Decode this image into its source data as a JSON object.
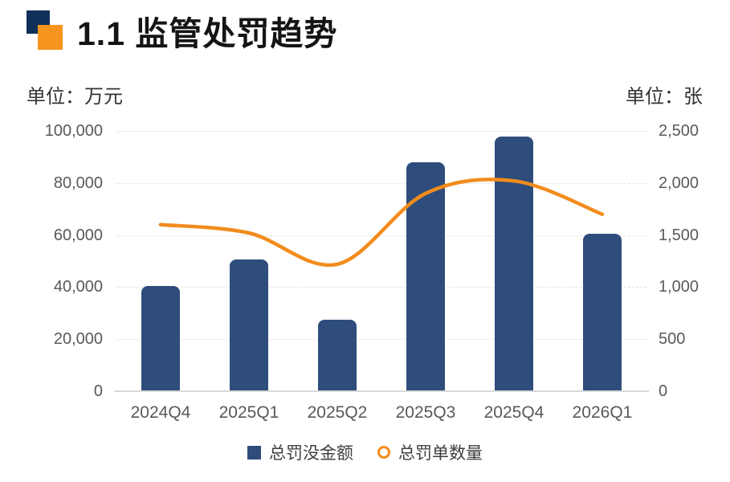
{
  "header": {
    "title": "1.1 监管处罚趋势"
  },
  "axes": {
    "left_unit": "单位：万元",
    "right_unit": "单位：张"
  },
  "chart_data": {
    "type": "combo",
    "categories": [
      "2024Q4",
      "2025Q1",
      "2025Q2",
      "2025Q3",
      "2025Q4",
      "2026Q1"
    ],
    "series": [
      {
        "name": "总罚没金额",
        "type": "bar",
        "y_axis": "left",
        "unit": "万元",
        "values": [
          40500,
          50500,
          27500,
          88000,
          98000,
          60500
        ],
        "color": "#2F4D7C"
      },
      {
        "name": "总罚单数量",
        "type": "line",
        "y_axis": "right",
        "unit": "张",
        "values": [
          1600,
          1520,
          1220,
          1900,
          2020,
          1700
        ],
        "color": "#F28C1C",
        "smooth": true
      }
    ],
    "left_axis": {
      "title": "单位：万元",
      "min": 0,
      "max": 100000,
      "tick_labels": [
        "100,000",
        "80,000",
        "60,000",
        "40,000",
        "20,000",
        "0"
      ]
    },
    "right_axis": {
      "title": "单位：张",
      "min": 0,
      "max": 2500,
      "tick_labels": [
        "2,500",
        "2,000",
        "1,500",
        "1,000",
        "500",
        "0"
      ]
    },
    "x_axis": {
      "labels": [
        "2024Q4",
        "2025Q1",
        "2025Q2",
        "2025Q3",
        "2025Q4",
        "2026Q1"
      ]
    },
    "grid": "horizontal-dashed",
    "legend_position": "bottom-center"
  },
  "legend": {
    "items": [
      {
        "label": "总罚没金额",
        "marker": "square",
        "color": "#2F4D7C"
      },
      {
        "label": "总罚单数量",
        "marker": "ring",
        "color": "#F28C1C"
      }
    ]
  },
  "colors": {
    "bar": "#2F4D7C",
    "line": "#F28C1C",
    "logo_navy": "#0F3058",
    "logo_orange": "#F7941E",
    "grid": "#E3E3E3",
    "axis_line": "#D8D8D8",
    "tick_text": "#595959",
    "title_text": "#141414",
    "unit_text": "#333333",
    "legend_text": "#3F3F3F"
  }
}
